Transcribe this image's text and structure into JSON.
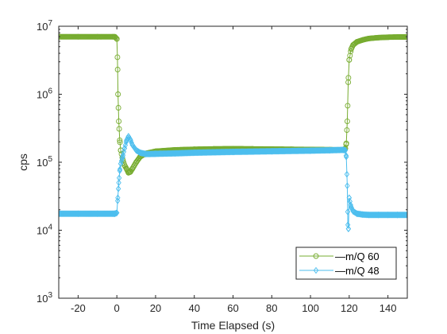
{
  "chart_data": {
    "type": "line",
    "xlabel": "Time Elapsed (s)",
    "ylabel": "cps",
    "xlim": [
      -30,
      150
    ],
    "ylim": [
      1000,
      10000000
    ],
    "yscale": "log",
    "x_ticks": [
      -20,
      0,
      20,
      40,
      60,
      80,
      100,
      120,
      140
    ],
    "y_ticks": [
      1000,
      10000,
      100000,
      1000000,
      10000000
    ],
    "grid": false,
    "legend_position": "bottom-right",
    "series": [
      {
        "name": "m/Q 60",
        "color": "#77ac30",
        "marker": "circle",
        "x": [
          -30,
          -20,
          -10,
          -2,
          -1,
          0,
          0.3,
          0.6,
          1,
          1.5,
          2,
          3,
          4,
          5,
          6,
          7,
          8,
          10,
          12,
          15,
          20,
          30,
          40,
          50,
          60,
          70,
          80,
          90,
          100,
          110,
          117,
          118,
          118.5,
          119,
          119.5,
          120,
          121,
          122,
          124,
          127,
          130,
          135,
          140,
          145,
          150
        ],
        "y": [
          7000000,
          7000000,
          7000000,
          7000000,
          7000000,
          6500000,
          3500000,
          1000000,
          400000,
          210000,
          150000,
          110000,
          90000,
          80000,
          70000,
          72000,
          80000,
          100000,
          120000,
          135000,
          145000,
          152000,
          155000,
          157000,
          158000,
          157000,
          156000,
          155000,
          154000,
          153000,
          152000,
          160000,
          190000,
          400000,
          1500000,
          3200000,
          4600000,
          5300000,
          5900000,
          6300000,
          6600000,
          6800000,
          6900000,
          6950000,
          6950000
        ]
      },
      {
        "name": "m/Q 48",
        "color": "#4dbeee",
        "marker": "diamond",
        "x": [
          -30,
          -20,
          -10,
          -2,
          -1,
          0,
          0.5,
          1,
          1.5,
          2,
          3,
          4,
          5,
          6,
          7,
          8,
          10,
          12,
          15,
          20,
          30,
          40,
          60,
          80,
          100,
          110,
          117,
          118,
          118.5,
          119,
          119.3,
          119.6,
          120,
          121,
          122,
          124,
          127,
          130,
          135,
          140,
          145,
          150
        ],
        "y": [
          17500,
          17500,
          17500,
          17500,
          17500,
          18000,
          30000,
          50000,
          75000,
          95000,
          120000,
          160000,
          210000,
          240000,
          215000,
          180000,
          150000,
          138000,
          132000,
          133000,
          135000,
          138000,
          142000,
          145000,
          148000,
          150000,
          152000,
          150000,
          120000,
          45000,
          12000,
          10500,
          30000,
          22000,
          19000,
          17500,
          17000,
          16800,
          16800,
          16800,
          16800,
          16800
        ]
      }
    ]
  }
}
